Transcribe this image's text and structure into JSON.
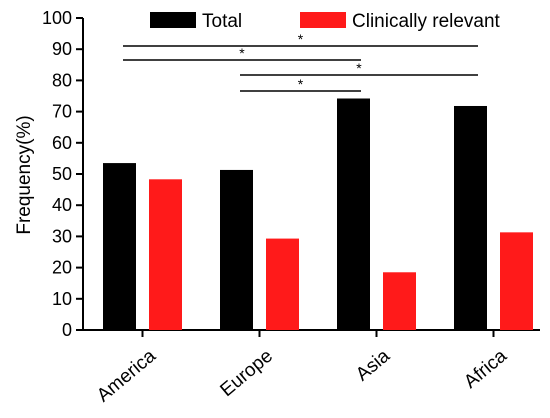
{
  "chart_data": {
    "type": "bar",
    "title": "",
    "xlabel": "",
    "ylabel": "Frequency(%)",
    "ylim": [
      0,
      100
    ],
    "yticks": [
      0,
      10,
      20,
      30,
      40,
      50,
      60,
      70,
      80,
      90,
      100
    ],
    "categories": [
      "America",
      "Europe",
      "Asia",
      "Africa"
    ],
    "series": [
      {
        "name": "Total",
        "color": "#000000",
        "values": [
          53.5,
          51.3,
          74.2,
          71.8
        ]
      },
      {
        "name": "Clinically relevant",
        "color": "#ff1a1a",
        "values": [
          48.3,
          29.3,
          18.5,
          31.3
        ]
      }
    ],
    "legend_position": "top",
    "grid": false,
    "significance": [
      {
        "from": "America",
        "to": "Africa",
        "label": "*"
      },
      {
        "from": "America",
        "to": "Asia",
        "label": "*"
      },
      {
        "from": "Europe",
        "to": "Africa",
        "label": "*"
      },
      {
        "from": "Europe",
        "to": "Asia",
        "label": "*"
      }
    ]
  }
}
